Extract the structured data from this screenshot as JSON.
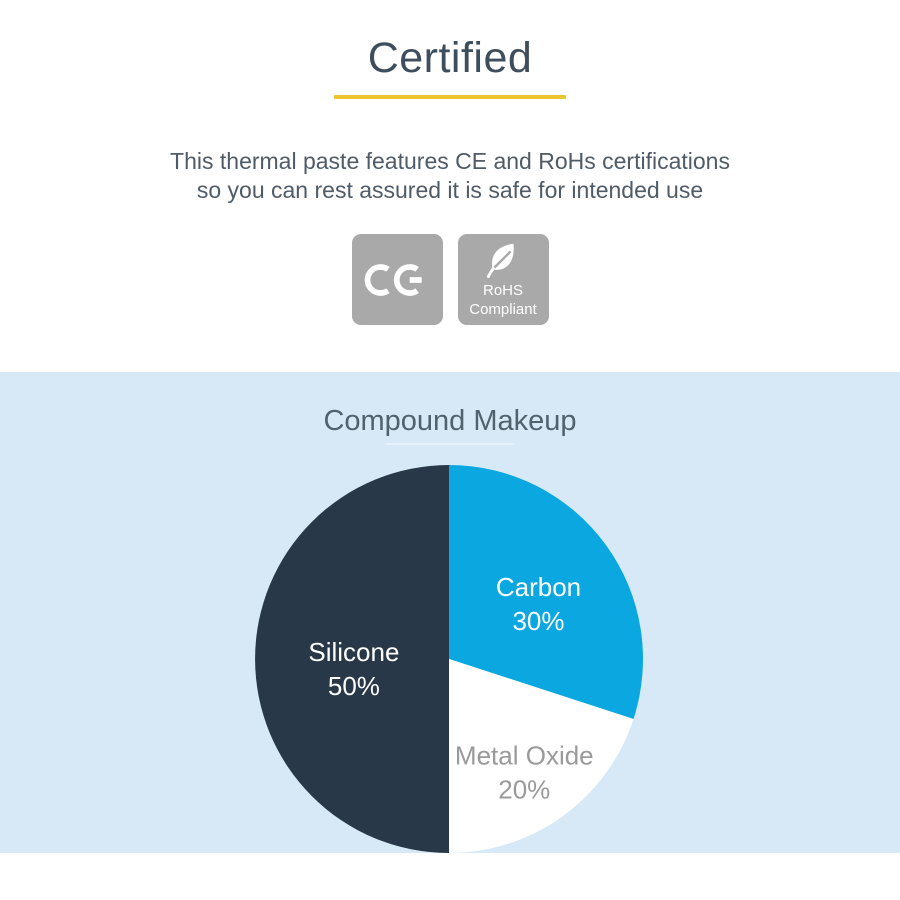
{
  "header": {
    "title": "Certified",
    "title_color": "#3E4E5D",
    "divider_color": "#EEC52F",
    "text_color": "#4F5B66",
    "description_lines": [
      "This thermal paste features CE and RoHs certifications",
      "so you can rest assured it is safe for intended use"
    ]
  },
  "badges": {
    "bg_color": "#A9A9A9",
    "ce": {
      "icon": "ce-mark-icon"
    },
    "rohs": {
      "icon": "leaf-icon",
      "line1": "RoHS",
      "line2": "Compliant"
    }
  },
  "chart_section": {
    "bg_color": "#D7E9F6",
    "title": "Compound Makeup",
    "title_color": "#51626F",
    "underline_color": "#E8F1F9"
  },
  "chart_data": {
    "type": "pie",
    "title": "Compound Makeup",
    "direction": "clockwise",
    "start_angle": "12-o-clock",
    "legend": "none",
    "slices": [
      {
        "label": "Carbon",
        "value": 30,
        "display": "30%",
        "color": "#0AA7E0",
        "label_color": "#FFFFFF",
        "label_r": 0.57
      },
      {
        "label": "Metal Oxide",
        "value": 20,
        "display": "20%",
        "color": "#FFFFFF",
        "label_color": "#9A9A9A",
        "label_r": 0.66
      },
      {
        "label": "Silicone",
        "value": 50,
        "display": "50%",
        "color": "#283848",
        "label_color": "#FFFFFF",
        "label_r": 0.49
      }
    ]
  }
}
